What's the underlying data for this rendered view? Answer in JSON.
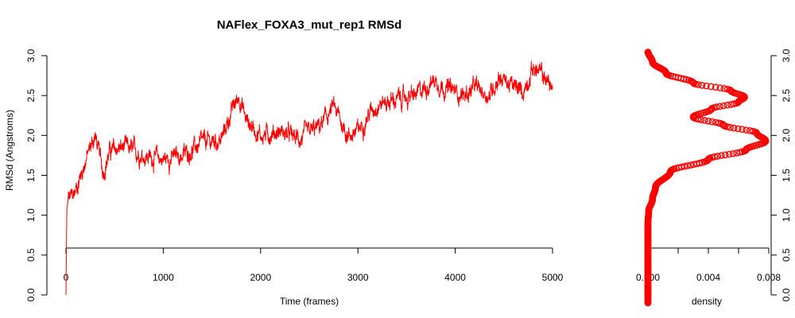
{
  "chart_data": [
    {
      "type": "line",
      "title": "NAFlex_FOXA3_mut_rep1 RMSd",
      "xlabel": "Time (frames)",
      "ylabel": "RMSd (Angstroms)",
      "xlim": [
        0,
        5000
      ],
      "ylim": [
        0,
        3
      ],
      "x_ticks": [
        "0",
        "1000",
        "2000",
        "3000",
        "4000",
        "5000"
      ],
      "y_ticks": [
        "0.0",
        "0.5",
        "1.0",
        "1.5",
        "2.0",
        "2.5",
        "3.0"
      ],
      "grid": false,
      "series": [
        {
          "color": "#ff0000",
          "noise_amplitude": 0.12,
          "points": [
            [
              0,
              0.0
            ],
            [
              8,
              1.0
            ],
            [
              25,
              1.2
            ],
            [
              80,
              1.25
            ],
            [
              150,
              1.5
            ],
            [
              220,
              1.75
            ],
            [
              300,
              2.0
            ],
            [
              380,
              1.55
            ],
            [
              450,
              1.8
            ],
            [
              600,
              1.85
            ],
            [
              800,
              1.75
            ],
            [
              1000,
              1.7
            ],
            [
              1200,
              1.75
            ],
            [
              1400,
              1.9
            ],
            [
              1600,
              1.95
            ],
            [
              1700,
              2.3
            ],
            [
              1780,
              2.5
            ],
            [
              1850,
              2.2
            ],
            [
              2000,
              2.0
            ],
            [
              2200,
              2.05
            ],
            [
              2400,
              1.95
            ],
            [
              2600,
              2.1
            ],
            [
              2750,
              2.35
            ],
            [
              2900,
              2.0
            ],
            [
              3000,
              2.05
            ],
            [
              3100,
              2.25
            ],
            [
              3200,
              2.4
            ],
            [
              3400,
              2.45
            ],
            [
              3600,
              2.5
            ],
            [
              3780,
              2.7
            ],
            [
              3900,
              2.6
            ],
            [
              4100,
              2.5
            ],
            [
              4200,
              2.6
            ],
            [
              4350,
              2.5
            ],
            [
              4450,
              2.75
            ],
            [
              4600,
              2.6
            ],
            [
              4700,
              2.55
            ],
            [
              4800,
              2.85
            ],
            [
              4900,
              2.75
            ],
            [
              5000,
              2.6
            ]
          ]
        }
      ]
    },
    {
      "type": "line",
      "title": "",
      "xlabel": "density",
      "ylabel": "",
      "xlim": [
        0,
        0.008
      ],
      "ylim": [
        0,
        3
      ],
      "x_ticks": [
        "0.000",
        "0.004",
        "0.008"
      ],
      "y_ticks": [
        "0.0",
        "0.5",
        "1.0",
        "1.5",
        "2.0",
        "2.5",
        "3.0"
      ],
      "grid": false,
      "marker": "circle",
      "series": [
        {
          "color": "#ff0000",
          "points": [
            [
              0.0,
              -0.1
            ],
            [
              0.0,
              0.5
            ],
            [
              0.0,
              0.9
            ],
            [
              5e-05,
              1.05
            ],
            [
              0.0003,
              1.2
            ],
            [
              0.0005,
              1.35
            ],
            [
              0.0015,
              1.55
            ],
            [
              0.004,
              1.7
            ],
            [
              0.0065,
              1.82
            ],
            [
              0.0078,
              1.93
            ],
            [
              0.0072,
              2.03
            ],
            [
              0.005,
              2.13
            ],
            [
              0.003,
              2.23
            ],
            [
              0.0042,
              2.33
            ],
            [
              0.006,
              2.42
            ],
            [
              0.0064,
              2.48
            ],
            [
              0.0055,
              2.56
            ],
            [
              0.003,
              2.66
            ],
            [
              0.0012,
              2.78
            ],
            [
              0.0003,
              2.92
            ],
            [
              0.0,
              3.05
            ]
          ]
        }
      ]
    }
  ]
}
